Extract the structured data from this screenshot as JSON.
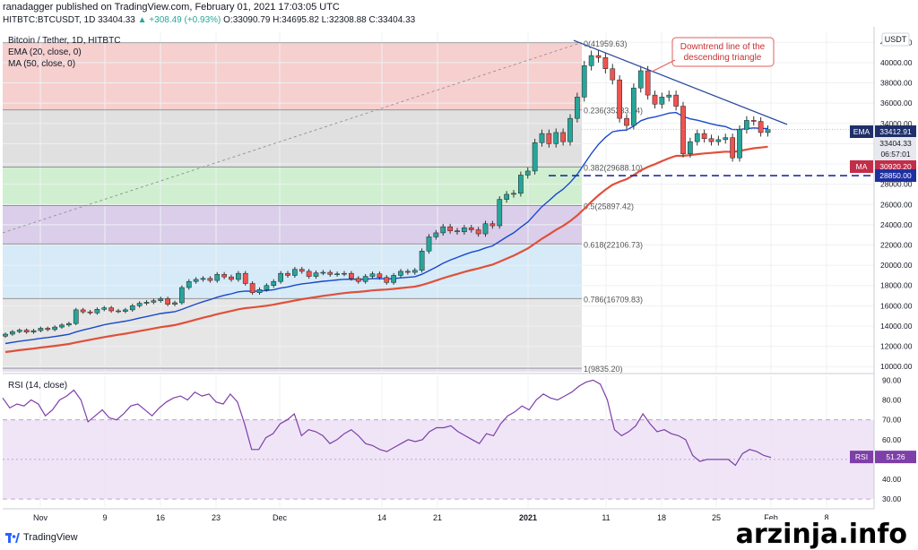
{
  "header": {
    "publisher_line": "ranadagger published on TradingView.com, February 01, 2021 17:03:05 UTC",
    "symbol": "HITBTC:BTCUSDT, 1D",
    "last": "33404.33",
    "change": "▲ +308.49 (+0.93%)",
    "ohlc": "O:33090.79 H:34695.82 L:32308.88 C:33404.33"
  },
  "legend": {
    "title": "Bitcoin / Tether, 1D, HITBTC",
    "ema": "EMA (20, close, 0)",
    "ma": "MA (50, close, 0)"
  },
  "annotation": "Downtrend line of the descending triangle",
  "currency": "USDT",
  "rsi_label": "RSI (14, close)",
  "brand": "TradingView",
  "watermark": "arzinja.info",
  "colors": {
    "up": "#26a69a",
    "down": "#ef5350",
    "ema": "#1848cc",
    "ma": "#e0503a",
    "rsi": "#7e3fa8",
    "support": "#1e2fa0",
    "trend": "#2e4aa0"
  },
  "chart_data": {
    "type": "candlestick",
    "x_ticks": [
      "Nov",
      "9",
      "16",
      "23",
      "Dec",
      "14",
      "21",
      "2021",
      "11",
      "18",
      "25",
      "Feb",
      "8"
    ],
    "y_ticks": [
      10000,
      12000,
      14000,
      16000,
      18000,
      20000,
      22000,
      24000,
      26000,
      28000,
      30000,
      32000,
      34000,
      36000,
      38000,
      40000,
      42000
    ],
    "ylim": [
      9400,
      43000
    ],
    "fib_levels": [
      {
        "label": "0(41959.63)",
        "value": 41959.63
      },
      {
        "label": "0.236(35333.24)",
        "value": 35333.24
      },
      {
        "label": "0.382(29688.10)",
        "value": 29688.1
      },
      {
        "label": "0.5(25897.42)",
        "value": 25897.42
      },
      {
        "label": "0.618(22106.73)",
        "value": 22106.73
      },
      {
        "label": "0.786(16709.83)",
        "value": 16709.83
      },
      {
        "label": "1(9835.20)",
        "value": 9835.2
      }
    ],
    "support": {
      "value": 28850,
      "label": "28850.00"
    },
    "price_tags": [
      {
        "name": "EMA",
        "label": "EMA",
        "value": "33412.91"
      },
      {
        "name": "Last",
        "label": "",
        "value": "33404.33"
      },
      {
        "name": "Countdown",
        "label": "",
        "value": "06:57:01"
      },
      {
        "name": "MA",
        "label": "MA",
        "value": "30920.20"
      }
    ],
    "closes": [
      13200,
      13450,
      13600,
      13400,
      13550,
      13780,
      13650,
      13900,
      14100,
      14250,
      15600,
      15400,
      15300,
      15650,
      15800,
      15500,
      15450,
      15600,
      16000,
      16250,
      16350,
      16500,
      16700,
      16150,
      16300,
      17800,
      18400,
      18600,
      18700,
      18500,
      19100,
      18850,
      18600,
      19200,
      18200,
      17300,
      17600,
      18000,
      18400,
      19200,
      19000,
      19600,
      19400,
      18900,
      19250,
      19300,
      19100,
      19150,
      19200,
      18700,
      18400,
      18900,
      19150,
      18800,
      18300,
      19000,
      19400,
      19300,
      19500,
      21400,
      22800,
      23200,
      23800,
      23400,
      23300,
      23700,
      23500,
      23100,
      24100,
      23900,
      26500,
      27000,
      27100,
      28900,
      29300,
      32100,
      33000,
      32000,
      33100,
      32200,
      34500,
      36600,
      39700,
      40700,
      40500,
      39400,
      38300,
      34500,
      33800,
      37500,
      39200,
      36800,
      35900,
      36600,
      36800,
      35700,
      31000,
      32200,
      33000,
      32500,
      32200,
      32400,
      32600,
      30600,
      33400,
      34300,
      34200,
      33100,
      33400
    ],
    "rsi": {
      "name": "RSI",
      "ylim": [
        26,
        92
      ],
      "y_ticks": [
        30,
        40,
        50,
        60,
        70,
        80,
        90
      ],
      "band": [
        30,
        70
      ],
      "last": "51.26",
      "values": [
        81,
        76,
        78,
        77,
        80,
        78,
        72,
        75,
        80,
        82,
        85,
        80,
        69,
        72,
        75,
        71,
        70,
        73,
        77,
        78,
        75,
        72,
        76,
        79,
        81,
        82,
        80,
        84,
        82,
        83,
        79,
        78,
        83,
        79,
        68,
        55,
        55,
        61,
        63,
        68,
        70,
        73,
        62,
        65,
        64,
        62,
        58,
        60,
        63,
        65,
        62,
        58,
        57,
        55,
        54,
        56,
        58,
        60,
        59,
        60,
        64,
        66,
        66,
        67,
        64,
        62,
        60,
        58,
        63,
        62,
        68,
        72,
        74,
        77,
        75,
        80,
        83,
        81,
        80,
        82,
        84,
        87,
        89,
        90,
        88,
        80,
        65,
        62,
        64,
        67,
        73,
        68,
        64,
        65,
        63,
        62,
        60,
        52,
        49,
        50,
        50,
        50,
        50,
        47,
        53,
        55,
        54,
        52,
        51
      ]
    }
  }
}
